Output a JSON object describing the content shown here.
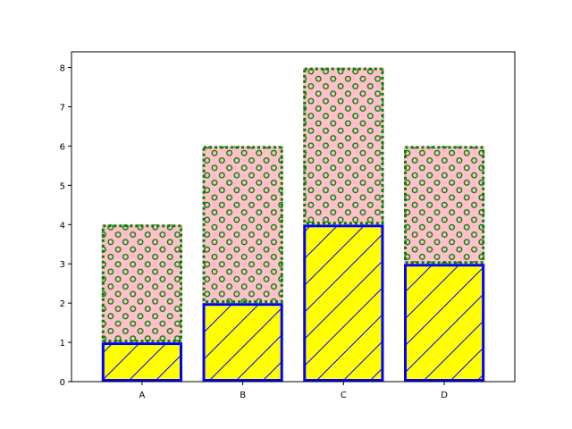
{
  "chart_data": {
    "type": "bar",
    "stacked": true,
    "categories": [
      "A",
      "B",
      "C",
      "D"
    ],
    "series": [
      {
        "values": [
          1,
          2,
          4,
          3
        ],
        "fill": "#ffff00",
        "edge": "#0000ff",
        "edge_style": "solid",
        "hatch": "diagonal-lines",
        "hatch_color": "#0000ff"
      },
      {
        "values": [
          3,
          4,
          4,
          3
        ],
        "fill": "#ffc0cb",
        "edge": "#008000",
        "edge_style": "dotted",
        "hatch": "small-circles",
        "hatch_color": "#008000"
      }
    ],
    "ylim": [
      0,
      8.4
    ],
    "yticks": [
      0,
      1,
      2,
      3,
      4,
      5,
      6,
      7,
      8
    ],
    "xlabel": "",
    "ylabel": "",
    "title": "",
    "grid": false,
    "legend": false
  }
}
